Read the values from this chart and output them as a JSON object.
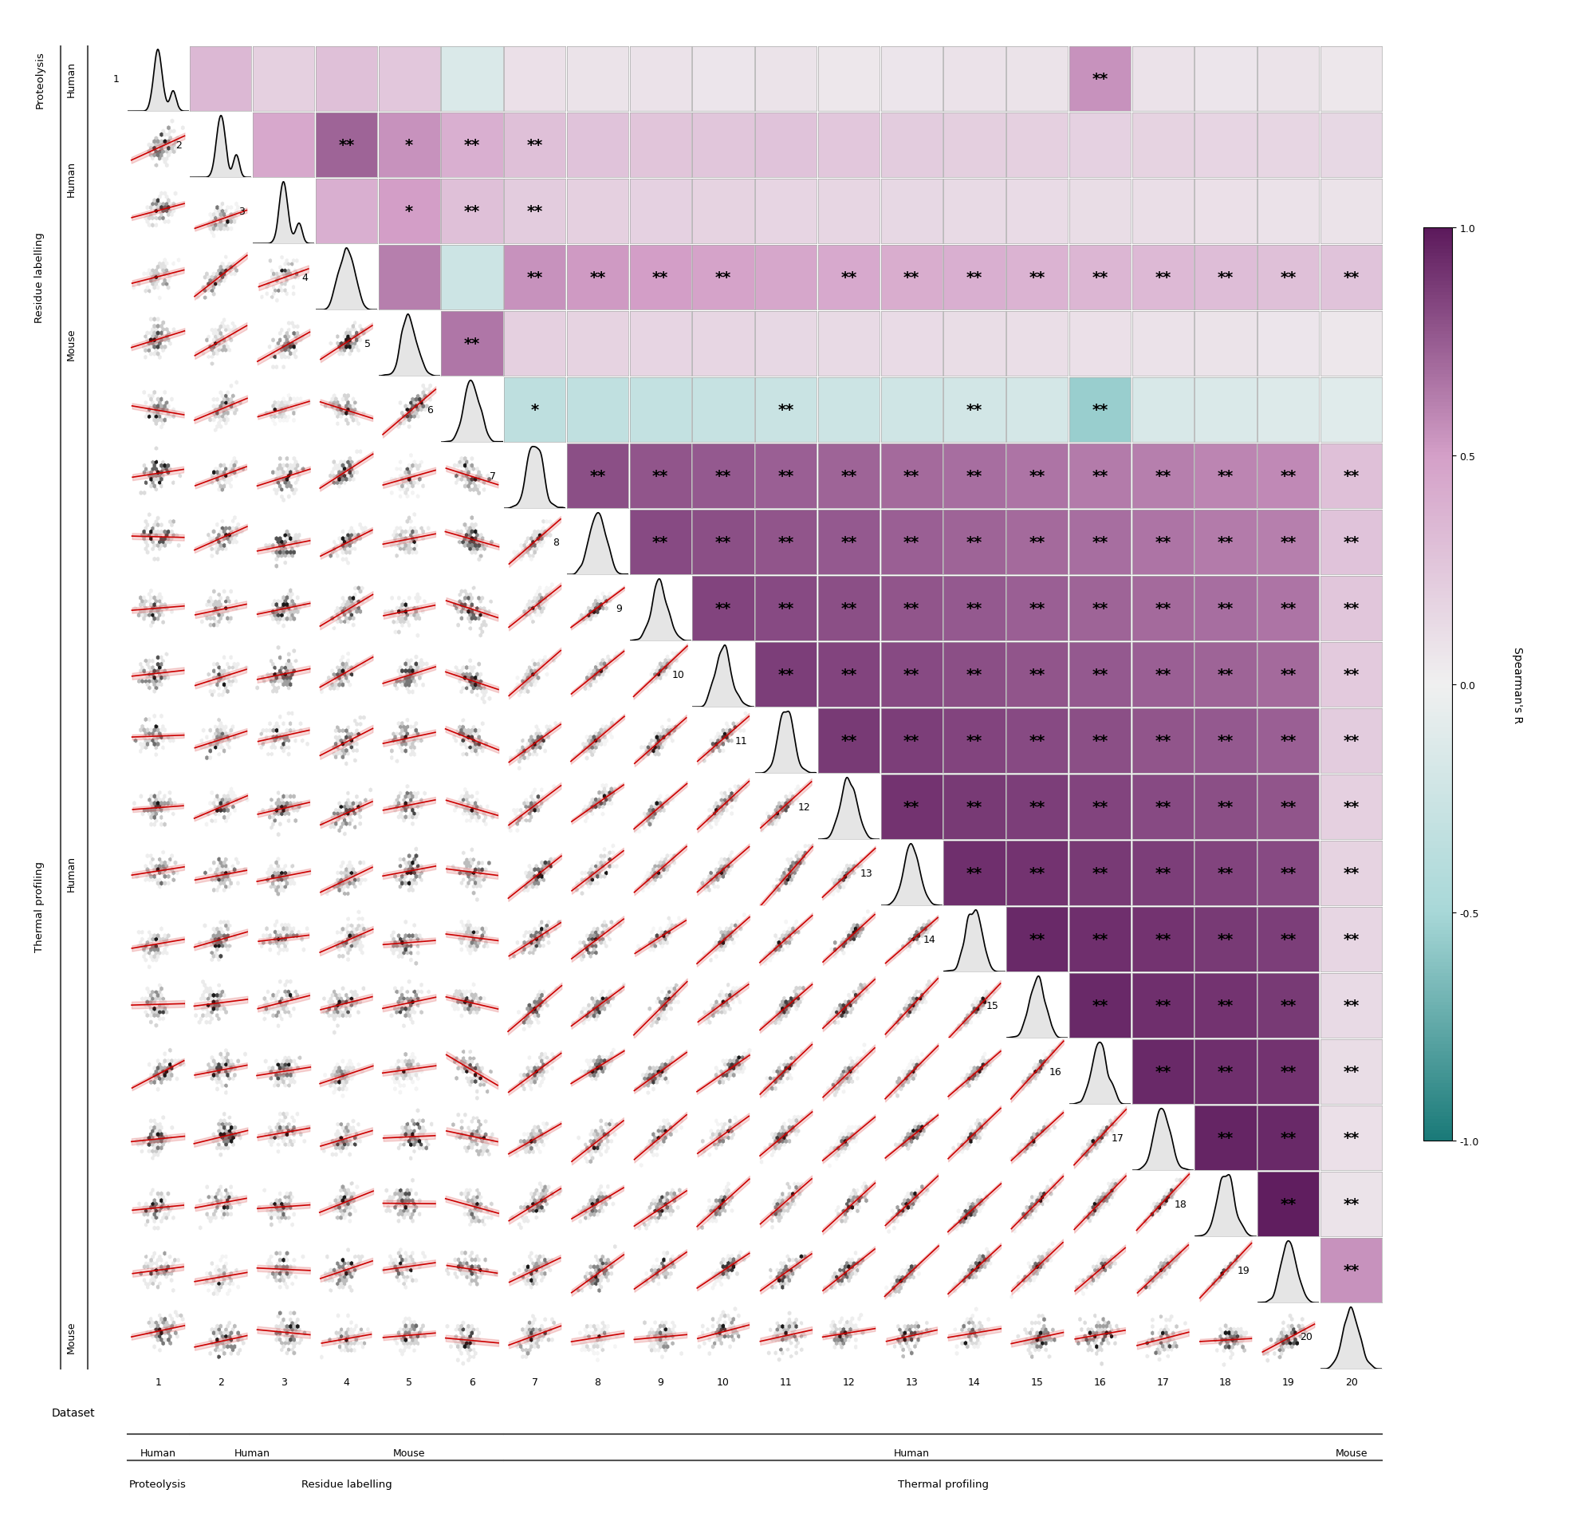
{
  "n_datasets": 20,
  "dataset_labels": [
    1,
    2,
    3,
    4,
    5,
    6,
    7,
    8,
    9,
    10,
    11,
    12,
    13,
    14,
    15,
    16,
    17,
    18,
    19,
    20
  ],
  "x_group_labels": [
    {
      "label": "Human",
      "start": 1,
      "end": 1,
      "method": "Proteolysis"
    },
    {
      "label": "Human",
      "start": 2,
      "end": 3,
      "method": "Residue labelling"
    },
    {
      "label": "Mouse",
      "start": 4,
      "end": 6,
      "method": "Residue labelling"
    },
    {
      "label": "Human",
      "start": 7,
      "end": 19,
      "method": "Thermal profiling"
    },
    {
      "label": "Mouse",
      "start": 20,
      "end": 20,
      "method": "Thermal profiling"
    }
  ],
  "y_group_labels": [
    {
      "label": "Human",
      "start": 1,
      "end": 1,
      "method": "Proteolysis"
    },
    {
      "label": "Human",
      "start": 2,
      "end": 3,
      "method": "Residue labelling"
    },
    {
      "label": "Mouse",
      "start": 4,
      "end": 6,
      "method": "Residue labelling"
    },
    {
      "label": "Human",
      "start": 7,
      "end": 19,
      "method": "Thermal profiling"
    },
    {
      "label": "Mouse",
      "start": 20,
      "end": 20,
      "method": "Thermal profiling"
    }
  ],
  "spearman_r": [
    [
      1.0,
      0.35,
      0.2,
      0.3,
      0.25,
      -0.15,
      0.1,
      0.08,
      0.09,
      0.07,
      0.08,
      0.06,
      0.07,
      0.09,
      0.08,
      0.55,
      0.09,
      0.07,
      0.08,
      0.06
    ],
    [
      0.35,
      1.0,
      0.45,
      0.72,
      0.55,
      0.4,
      0.3,
      0.28,
      0.27,
      0.26,
      0.28,
      0.25,
      0.22,
      0.21,
      0.2,
      0.19,
      0.18,
      0.17,
      0.16,
      0.15
    ],
    [
      0.2,
      0.45,
      1.0,
      0.4,
      0.5,
      0.3,
      0.22,
      0.2,
      0.19,
      0.18,
      0.17,
      0.16,
      0.15,
      0.14,
      0.13,
      0.12,
      0.11,
      0.1,
      0.09,
      0.08
    ],
    [
      0.3,
      0.72,
      0.4,
      1.0,
      0.62,
      -0.25,
      0.55,
      0.52,
      0.5,
      0.48,
      0.46,
      0.44,
      0.42,
      0.4,
      0.38,
      0.36,
      0.34,
      0.32,
      0.3,
      0.28
    ],
    [
      0.25,
      0.55,
      0.5,
      0.62,
      1.0,
      0.65,
      0.2,
      0.18,
      0.17,
      0.16,
      0.15,
      0.14,
      0.13,
      0.12,
      0.11,
      0.1,
      0.09,
      0.08,
      0.07,
      0.06
    ],
    [
      -0.15,
      0.4,
      0.3,
      -0.25,
      0.65,
      1.0,
      -0.35,
      -0.33,
      -0.31,
      -0.29,
      -0.27,
      -0.25,
      -0.23,
      -0.21,
      -0.19,
      -0.55,
      -0.17,
      -0.15,
      -0.13,
      -0.11
    ],
    [
      0.1,
      0.3,
      0.22,
      0.55,
      0.2,
      -0.35,
      1.0,
      0.8,
      0.78,
      0.76,
      0.74,
      0.72,
      0.7,
      0.68,
      0.66,
      0.64,
      0.62,
      0.6,
      0.58,
      0.3
    ],
    [
      0.08,
      0.28,
      0.2,
      0.52,
      0.18,
      -0.33,
      0.8,
      1.0,
      0.82,
      0.8,
      0.78,
      0.76,
      0.74,
      0.72,
      0.7,
      0.68,
      0.66,
      0.64,
      0.62,
      0.28
    ],
    [
      0.09,
      0.27,
      0.19,
      0.5,
      0.17,
      -0.31,
      0.78,
      0.82,
      1.0,
      0.84,
      0.82,
      0.8,
      0.78,
      0.76,
      0.74,
      0.72,
      0.7,
      0.68,
      0.66,
      0.26
    ],
    [
      0.07,
      0.26,
      0.18,
      0.48,
      0.16,
      -0.29,
      0.76,
      0.8,
      0.84,
      1.0,
      0.86,
      0.84,
      0.82,
      0.8,
      0.78,
      0.76,
      0.74,
      0.72,
      0.7,
      0.24
    ],
    [
      0.08,
      0.28,
      0.17,
      0.46,
      0.15,
      -0.27,
      0.74,
      0.78,
      0.82,
      0.86,
      1.0,
      0.88,
      0.86,
      0.84,
      0.82,
      0.8,
      0.78,
      0.76,
      0.74,
      0.22
    ],
    [
      0.06,
      0.25,
      0.16,
      0.44,
      0.14,
      -0.25,
      0.72,
      0.76,
      0.8,
      0.84,
      0.88,
      1.0,
      0.9,
      0.88,
      0.86,
      0.84,
      0.82,
      0.8,
      0.78,
      0.2
    ],
    [
      0.07,
      0.22,
      0.15,
      0.42,
      0.13,
      -0.23,
      0.7,
      0.74,
      0.78,
      0.82,
      0.86,
      0.9,
      1.0,
      0.92,
      0.9,
      0.88,
      0.86,
      0.84,
      0.82,
      0.18
    ],
    [
      0.09,
      0.21,
      0.14,
      0.4,
      0.12,
      -0.21,
      0.68,
      0.72,
      0.76,
      0.8,
      0.84,
      0.88,
      0.92,
      1.0,
      0.94,
      0.92,
      0.9,
      0.88,
      0.86,
      0.16
    ],
    [
      0.08,
      0.2,
      0.13,
      0.38,
      0.11,
      -0.19,
      0.66,
      0.7,
      0.74,
      0.78,
      0.82,
      0.86,
      0.9,
      0.94,
      1.0,
      0.94,
      0.92,
      0.9,
      0.88,
      0.14
    ],
    [
      0.55,
      0.19,
      0.12,
      0.36,
      0.1,
      -0.55,
      0.64,
      0.68,
      0.72,
      0.76,
      0.8,
      0.84,
      0.88,
      0.92,
      0.94,
      1.0,
      0.94,
      0.92,
      0.9,
      0.12
    ],
    [
      0.09,
      0.18,
      0.11,
      0.34,
      0.09,
      -0.17,
      0.62,
      0.66,
      0.7,
      0.74,
      0.78,
      0.82,
      0.86,
      0.9,
      0.92,
      0.94,
      1.0,
      0.96,
      0.94,
      0.1
    ],
    [
      0.07,
      0.17,
      0.1,
      0.32,
      0.08,
      -0.15,
      0.6,
      0.64,
      0.68,
      0.72,
      0.76,
      0.8,
      0.84,
      0.88,
      0.9,
      0.92,
      0.96,
      1.0,
      0.98,
      0.08
    ],
    [
      0.08,
      0.16,
      0.09,
      0.3,
      0.07,
      -0.13,
      0.58,
      0.62,
      0.66,
      0.7,
      0.74,
      0.78,
      0.82,
      0.86,
      0.88,
      0.9,
      0.94,
      0.98,
      1.0,
      0.55
    ],
    [
      0.06,
      0.15,
      0.08,
      0.28,
      0.06,
      -0.11,
      0.3,
      0.28,
      0.26,
      0.24,
      0.22,
      0.2,
      0.18,
      0.16,
      0.14,
      0.12,
      0.1,
      0.08,
      0.55,
      1.0
    ]
  ],
  "significance": [
    [
      0,
      0,
      0,
      0,
      0,
      0,
      0,
      0,
      0,
      0,
      0,
      0,
      0,
      0,
      0,
      2,
      0,
      0,
      0,
      0
    ],
    [
      0,
      0,
      0,
      2,
      1,
      2,
      2,
      0,
      0,
      0,
      0,
      0,
      0,
      0,
      0,
      0,
      0,
      0,
      0,
      0
    ],
    [
      0,
      0,
      0,
      0,
      1,
      2,
      2,
      0,
      0,
      0,
      0,
      0,
      0,
      0,
      0,
      0,
      0,
      0,
      0,
      0
    ],
    [
      0,
      2,
      0,
      0,
      0,
      0,
      2,
      2,
      2,
      2,
      0,
      2,
      2,
      2,
      2,
      2,
      2,
      2,
      2,
      2
    ],
    [
      0,
      1,
      1,
      0,
      0,
      2,
      0,
      0,
      0,
      0,
      0,
      0,
      0,
      0,
      0,
      0,
      0,
      0,
      0,
      0
    ],
    [
      0,
      2,
      2,
      0,
      2,
      0,
      1,
      0,
      0,
      0,
      2,
      0,
      0,
      2,
      0,
      2,
      0,
      0,
      0,
      0
    ],
    [
      0,
      2,
      2,
      2,
      0,
      1,
      0,
      2,
      2,
      2,
      2,
      2,
      2,
      2,
      2,
      2,
      2,
      2,
      2,
      2
    ],
    [
      0,
      0,
      0,
      2,
      0,
      0,
      2,
      0,
      2,
      2,
      2,
      2,
      2,
      2,
      2,
      2,
      2,
      2,
      2,
      2
    ],
    [
      0,
      0,
      0,
      2,
      0,
      0,
      2,
      2,
      0,
      2,
      2,
      2,
      2,
      2,
      2,
      2,
      2,
      2,
      2,
      2
    ],
    [
      0,
      0,
      0,
      2,
      0,
      0,
      2,
      2,
      2,
      0,
      2,
      2,
      2,
      2,
      2,
      2,
      2,
      2,
      2,
      2
    ],
    [
      0,
      0,
      0,
      0,
      0,
      0,
      2,
      2,
      2,
      2,
      0,
      2,
      2,
      2,
      2,
      2,
      2,
      2,
      2,
      2
    ],
    [
      0,
      0,
      0,
      2,
      0,
      0,
      2,
      2,
      2,
      2,
      2,
      0,
      2,
      2,
      2,
      2,
      2,
      2,
      2,
      2
    ],
    [
      0,
      0,
      0,
      2,
      0,
      0,
      2,
      2,
      2,
      2,
      2,
      2,
      0,
      2,
      2,
      2,
      2,
      2,
      2,
      2
    ],
    [
      0,
      0,
      0,
      2,
      0,
      0,
      2,
      2,
      2,
      2,
      2,
      2,
      2,
      0,
      2,
      2,
      2,
      2,
      2,
      2
    ],
    [
      0,
      0,
      0,
      2,
      0,
      0,
      2,
      2,
      2,
      2,
      2,
      2,
      2,
      2,
      0,
      2,
      2,
      2,
      2,
      2
    ],
    [
      2,
      0,
      0,
      2,
      0,
      2,
      2,
      2,
      2,
      2,
      2,
      2,
      2,
      2,
      2,
      0,
      2,
      2,
      2,
      2
    ],
    [
      0,
      0,
      0,
      2,
      0,
      0,
      2,
      2,
      2,
      2,
      2,
      2,
      2,
      2,
      2,
      2,
      0,
      2,
      2,
      2
    ],
    [
      0,
      0,
      0,
      2,
      0,
      0,
      2,
      2,
      2,
      2,
      2,
      2,
      2,
      2,
      2,
      2,
      2,
      0,
      2,
      2
    ],
    [
      0,
      0,
      0,
      2,
      0,
      0,
      2,
      2,
      2,
      2,
      2,
      2,
      2,
      2,
      2,
      2,
      2,
      2,
      0,
      2
    ],
    [
      0,
      0,
      0,
      2,
      0,
      0,
      2,
      2,
      2,
      2,
      2,
      2,
      2,
      2,
      2,
      2,
      2,
      2,
      2,
      0
    ]
  ],
  "colorbar_label": "Spearman's R",
  "background_color": "#f5f5f5",
  "cell_border_color": "#888888",
  "scatter_point_color": "#555555",
  "scatter_line_color": "#cc0000",
  "diagonal_color": "#111111",
  "title": ""
}
